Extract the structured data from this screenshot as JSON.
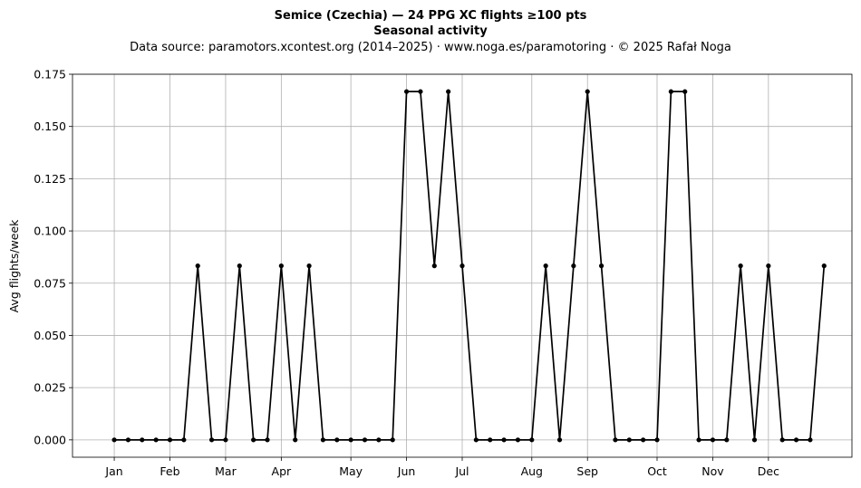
{
  "chart_data": {
    "type": "line",
    "title": "Semice (Czechia)  —  24 PPG XC flights ≥100 pts",
    "subtitle": "Seasonal activity",
    "source": "Data source: paramotors.xcontest.org (2014–2025)  ·  www.noga.es/paramotoring  ·  © 2025 Rafał Noga",
    "xlabel": "",
    "ylabel": "Avg flights/week",
    "xlim": [
      -3,
      53
    ],
    "ylim": [
      -0.0083,
      0.175
    ],
    "grid": true,
    "line_color": "#000000",
    "month_ticks": [
      {
        "label": "Jan",
        "x": 0
      },
      {
        "label": "Feb",
        "x": 4
      },
      {
        "label": "Mar",
        "x": 8
      },
      {
        "label": "Apr",
        "x": 12
      },
      {
        "label": "May",
        "x": 17
      },
      {
        "label": "Jun",
        "x": 21
      },
      {
        "label": "Jul",
        "x": 25
      },
      {
        "label": "Aug",
        "x": 30
      },
      {
        "label": "Sep",
        "x": 34
      },
      {
        "label": "Oct",
        "x": 39
      },
      {
        "label": "Nov",
        "x": 43
      },
      {
        "label": "Dec",
        "x": 47
      }
    ],
    "y_ticks": [
      {
        "label": "0.000",
        "value": 0
      },
      {
        "label": "0.025",
        "value": 0.025
      },
      {
        "label": "0.050",
        "value": 0.05
      },
      {
        "label": "0.075",
        "value": 0.075
      },
      {
        "label": "0.100",
        "value": 0.1
      },
      {
        "label": "0.125",
        "value": 0.125
      },
      {
        "label": "0.150",
        "value": 0.15
      },
      {
        "label": "0.175",
        "value": 0.175
      }
    ],
    "series": [
      {
        "x": [
          0,
          1,
          2,
          3,
          4,
          5,
          6,
          7,
          8,
          9,
          10,
          11,
          12,
          13,
          14,
          15,
          16,
          17,
          18,
          19,
          20,
          21,
          22,
          23,
          24,
          25,
          26,
          27,
          28,
          29,
          30,
          31,
          32,
          33,
          34,
          35,
          36,
          37,
          38,
          39,
          40,
          41,
          42,
          43,
          44,
          45,
          46,
          47,
          48,
          49,
          50,
          51
        ],
        "values": [
          0,
          0,
          0,
          0,
          0,
          0,
          0.0833,
          0,
          0,
          0.0833,
          0,
          0,
          0.0833,
          0,
          0.0833,
          0,
          0,
          0,
          0,
          0,
          0,
          0.1667,
          0.1667,
          0.0833,
          0.1667,
          0.0833,
          0,
          0,
          0,
          0,
          0,
          0.0833,
          0,
          0.0833,
          0.1667,
          0.0833,
          0,
          0,
          0,
          0,
          0.1667,
          0.1667,
          0,
          0,
          0,
          0.0833,
          0,
          0.0833,
          0,
          0,
          0,
          0.0833
        ]
      }
    ]
  }
}
